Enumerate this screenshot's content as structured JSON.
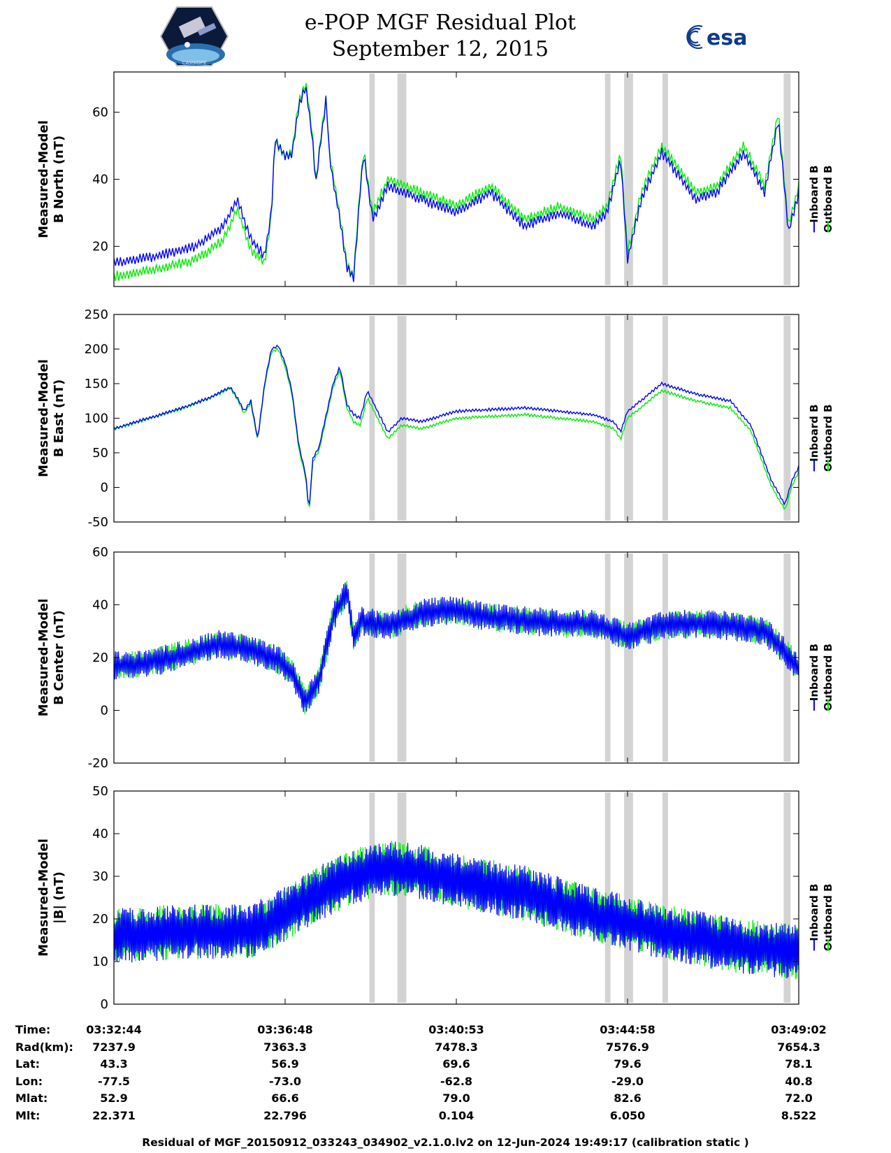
{
  "header": {
    "title_line1": "e-POP MGF Residual Plot",
    "title_line2": "September 12, 2015",
    "logo_left": "CASSIOPE",
    "logo_right": "esa"
  },
  "colors": {
    "inboard": "#0000ff",
    "outboard": "#00ee00",
    "gap": "#d3d3d3"
  },
  "chart_data": [
    {
      "type": "line",
      "ylabel": [
        "Measured-Model",
        "B North (nT)"
      ],
      "ylim": [
        8,
        72
      ],
      "yticks": [
        20,
        40,
        60
      ],
      "series": [
        {
          "name": "Inboard B",
          "color": "#0000ff",
          "x": [
            0,
            0.06,
            0.12,
            0.16,
            0.18,
            0.2,
            0.22,
            0.23,
            0.235,
            0.25,
            0.26,
            0.27,
            0.28,
            0.29,
            0.295,
            0.3,
            0.31,
            0.315,
            0.33,
            0.34,
            0.35,
            0.36,
            0.365,
            0.372,
            0.378,
            0.4,
            0.45,
            0.5,
            0.55,
            0.6,
            0.65,
            0.7,
            0.72,
            0.74,
            0.75,
            0.77,
            0.8,
            0.85,
            0.88,
            0.9,
            0.92,
            0.95,
            0.97,
            0.985,
            1.0
          ],
          "y": [
            15,
            17,
            20,
            26,
            34,
            22,
            17,
            30,
            52,
            47,
            47,
            62,
            68,
            52,
            38,
            48,
            64,
            46,
            28,
            14,
            10,
            38,
            48,
            36,
            28,
            38,
            34,
            30,
            36,
            26,
            30,
            26,
            30,
            46,
            16,
            34,
            48,
            34,
            36,
            42,
            48,
            36,
            58,
            24,
            36
          ]
        },
        {
          "name": "Outboard B",
          "color": "#00ee00",
          "x": [
            0,
            0.06,
            0.12,
            0.16,
            0.18,
            0.2,
            0.22,
            0.23,
            0.235,
            0.25,
            0.26,
            0.27,
            0.28,
            0.29,
            0.295,
            0.3,
            0.31,
            0.315,
            0.33,
            0.34,
            0.35,
            0.36,
            0.365,
            0.372,
            0.378,
            0.4,
            0.45,
            0.5,
            0.55,
            0.6,
            0.65,
            0.7,
            0.72,
            0.74,
            0.75,
            0.77,
            0.8,
            0.85,
            0.88,
            0.9,
            0.92,
            0.95,
            0.97,
            0.985,
            1.0
          ],
          "y": [
            11,
            13,
            16,
            22,
            31,
            19,
            15,
            29,
            51,
            47,
            48,
            63,
            69,
            53,
            39,
            49,
            65,
            47,
            29,
            15,
            11,
            39,
            49,
            37,
            30,
            40,
            36,
            32,
            38,
            28,
            32,
            28,
            32,
            48,
            18,
            36,
            50,
            36,
            38,
            44,
            50,
            38,
            60,
            26,
            38
          ]
        }
      ],
      "legend": [
        "Inboard B",
        "Outboard B"
      ]
    },
    {
      "type": "line",
      "ylabel": [
        "Measured-Model",
        "B East (nT)"
      ],
      "ylim": [
        -50,
        250
      ],
      "yticks": [
        -50,
        0,
        50,
        100,
        150,
        200,
        250
      ],
      "series": [
        {
          "name": "Inboard B",
          "color": "#0000ff",
          "x": [
            0,
            0.05,
            0.1,
            0.14,
            0.17,
            0.18,
            0.19,
            0.2,
            0.21,
            0.22,
            0.23,
            0.24,
            0.25,
            0.26,
            0.27,
            0.28,
            0.285,
            0.29,
            0.3,
            0.32,
            0.33,
            0.34,
            0.35,
            0.36,
            0.37,
            0.4,
            0.42,
            0.45,
            0.5,
            0.6,
            0.65,
            0.7,
            0.73,
            0.74,
            0.75,
            0.8,
            0.85,
            0.9,
            0.93,
            0.96,
            0.98,
            0.99,
            1.0
          ],
          "y": [
            85,
            100,
            115,
            130,
            145,
            130,
            110,
            125,
            70,
            150,
            200,
            205,
            180,
            140,
            60,
            20,
            -35,
            40,
            60,
            150,
            175,
            120,
            105,
            100,
            140,
            80,
            100,
            95,
            110,
            115,
            110,
            105,
            95,
            80,
            110,
            150,
            135,
            125,
            90,
            10,
            -25,
            10,
            30
          ]
        },
        {
          "name": "Outboard B",
          "color": "#00ee00",
          "x": [
            0,
            0.05,
            0.1,
            0.14,
            0.17,
            0.18,
            0.19,
            0.2,
            0.21,
            0.22,
            0.23,
            0.24,
            0.25,
            0.26,
            0.27,
            0.28,
            0.285,
            0.29,
            0.3,
            0.32,
            0.33,
            0.34,
            0.35,
            0.36,
            0.37,
            0.4,
            0.42,
            0.45,
            0.5,
            0.6,
            0.65,
            0.7,
            0.73,
            0.74,
            0.75,
            0.8,
            0.85,
            0.9,
            0.93,
            0.96,
            0.98,
            0.99,
            1.0
          ],
          "y": [
            84,
            99,
            114,
            129,
            143,
            128,
            107,
            122,
            67,
            147,
            196,
            200,
            175,
            135,
            55,
            15,
            -40,
            35,
            55,
            145,
            170,
            115,
            95,
            90,
            130,
            70,
            90,
            85,
            100,
            105,
            100,
            95,
            85,
            70,
            100,
            140,
            125,
            115,
            82,
            2,
            -33,
            2,
            22
          ]
        }
      ],
      "legend": [
        "Inboard B",
        "Outboard B"
      ]
    },
    {
      "type": "line",
      "ylabel": [
        "Measured-Model",
        "B Center (nT)"
      ],
      "ylim": [
        -20,
        60
      ],
      "yticks": [
        -20,
        0,
        20,
        40,
        60
      ],
      "series": [
        {
          "name": "Inboard B",
          "color": "#0000ff",
          "x": [
            0,
            0.05,
            0.1,
            0.15,
            0.2,
            0.24,
            0.26,
            0.28,
            0.3,
            0.32,
            0.34,
            0.35,
            0.36,
            0.4,
            0.45,
            0.5,
            0.55,
            0.6,
            0.65,
            0.7,
            0.75,
            0.8,
            0.85,
            0.9,
            0.95,
            0.97,
            1.0
          ],
          "y": [
            17,
            18,
            21,
            25,
            23,
            19,
            14,
            3,
            12,
            35,
            45,
            27,
            34,
            32,
            37,
            38,
            35,
            34,
            33,
            33,
            28,
            32,
            33,
            32,
            30,
            25,
            16
          ]
        },
        {
          "name": "Outboard B",
          "color": "#00ee00",
          "x": [
            0,
            0.05,
            0.1,
            0.15,
            0.2,
            0.24,
            0.26,
            0.28,
            0.3,
            0.32,
            0.34,
            0.35,
            0.36,
            0.4,
            0.45,
            0.5,
            0.55,
            0.6,
            0.65,
            0.7,
            0.75,
            0.8,
            0.85,
            0.9,
            0.95,
            0.97,
            1.0
          ],
          "y": [
            17,
            18,
            21,
            25,
            23,
            19,
            14,
            3,
            12,
            35,
            45,
            27,
            34,
            32,
            37,
            38,
            35,
            34,
            33,
            33,
            28,
            32,
            33,
            32,
            30,
            25,
            16
          ]
        }
      ],
      "legend": [
        "Inboard B",
        "Outboard B"
      ]
    },
    {
      "type": "line",
      "ylabel": [
        "Measured-Model",
        "|B| (nT)"
      ],
      "ylim": [
        0,
        50
      ],
      "yticks": [
        0,
        10,
        20,
        30,
        40,
        50
      ],
      "series": [
        {
          "name": "Inboard B",
          "color": "#0000ff",
          "x": [
            0,
            0.1,
            0.2,
            0.25,
            0.3,
            0.35,
            0.4,
            0.45,
            0.5,
            0.6,
            0.7,
            0.8,
            0.9,
            1.0
          ],
          "y": [
            16,
            17,
            17,
            21,
            26,
            30,
            32,
            31,
            29,
            26,
            21,
            17,
            14,
            12
          ]
        },
        {
          "name": "Outboard B",
          "color": "#00ee00",
          "x": [
            0,
            0.1,
            0.2,
            0.25,
            0.3,
            0.35,
            0.4,
            0.45,
            0.5,
            0.6,
            0.7,
            0.8,
            0.9,
            1.0
          ],
          "y": [
            16,
            17,
            17,
            21,
            26,
            30,
            32,
            31,
            29,
            26,
            21,
            17,
            14,
            12
          ]
        }
      ],
      "legend": [
        "Inboard B",
        "Outboard B"
      ]
    }
  ],
  "gap_bands": [
    [
      0.373,
      0.381
    ],
    [
      0.414,
      0.427
    ],
    [
      0.717,
      0.725
    ],
    [
      0.745,
      0.758
    ],
    [
      0.801,
      0.809
    ],
    [
      0.978,
      0.988
    ]
  ],
  "x_ticks": [
    0,
    0.25,
    0.5,
    0.75,
    1.0
  ],
  "info_table": {
    "labels": [
      "Time:",
      "Rad(km):",
      "Lat:",
      "Lon:",
      "Mlat:",
      "Mlt:"
    ],
    "columns": [
      [
        "03:32:44",
        "7237.9",
        "43.3",
        "-77.5",
        "52.9",
        "22.371"
      ],
      [
        "03:36:48",
        "7363.3",
        "56.9",
        "-73.0",
        "66.6",
        "22.796"
      ],
      [
        "03:40:53",
        "7478.3",
        "69.6",
        "-62.8",
        "79.0",
        "0.104"
      ],
      [
        "03:44:58",
        "7576.9",
        "79.6",
        "-29.0",
        "82.6",
        "6.050"
      ],
      [
        "03:49:02",
        "7654.3",
        "78.1",
        "40.8",
        "72.0",
        "8.522"
      ]
    ]
  },
  "footer": "Residual of MGF_20150912_033243_034902_v2.1.0.lv2 on 12-Jun-2024 19:49:17 (calibration static )"
}
